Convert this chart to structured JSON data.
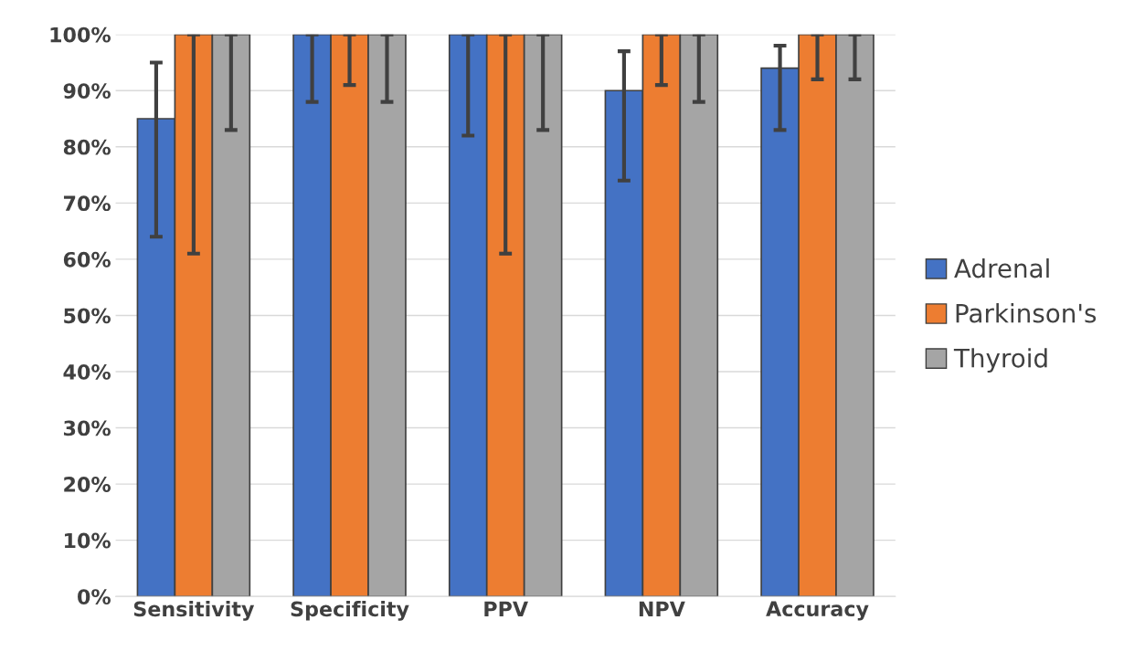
{
  "chart_data": {
    "type": "bar",
    "categories": [
      "Sensitivity",
      "Specificity",
      "PPV",
      "NPV",
      "Accuracy"
    ],
    "series": [
      {
        "name": "Adrenal",
        "color": "#4472c4",
        "values": [
          85,
          100,
          100,
          90,
          94
        ],
        "errors": [
          [
            64,
            95
          ],
          [
            88,
            100
          ],
          [
            82,
            100
          ],
          [
            74,
            97
          ],
          [
            83,
            98
          ]
        ]
      },
      {
        "name": "Parkinson's",
        "color": "#ed7d31",
        "values": [
          100,
          100,
          100,
          100,
          100
        ],
        "errors": [
          [
            61,
            100
          ],
          [
            91,
            100
          ],
          [
            61,
            100
          ],
          [
            91,
            100
          ],
          [
            92,
            100
          ]
        ]
      },
      {
        "name": "Thyroid",
        "color": "#a5a5a5",
        "values": [
          100,
          100,
          100,
          100,
          100
        ],
        "errors": [
          [
            83,
            100
          ],
          [
            88,
            100
          ],
          [
            83,
            100
          ],
          [
            88,
            100
          ],
          [
            92,
            100
          ]
        ]
      }
    ],
    "ylim": [
      0,
      100
    ],
    "yticks": [
      {
        "value": 0,
        "label": "0%"
      },
      {
        "value": 10,
        "label": "10%"
      },
      {
        "value": 20,
        "label": "20%"
      },
      {
        "value": 30,
        "label": "30%"
      },
      {
        "value": 40,
        "label": "40%"
      },
      {
        "value": 50,
        "label": "50%"
      },
      {
        "value": 60,
        "label": "60%"
      },
      {
        "value": 70,
        "label": "70%"
      },
      {
        "value": 80,
        "label": "80%"
      },
      {
        "value": 90,
        "label": "90%"
      },
      {
        "value": 100,
        "label": "100%"
      }
    ],
    "grid": "y",
    "legend": "right"
  }
}
